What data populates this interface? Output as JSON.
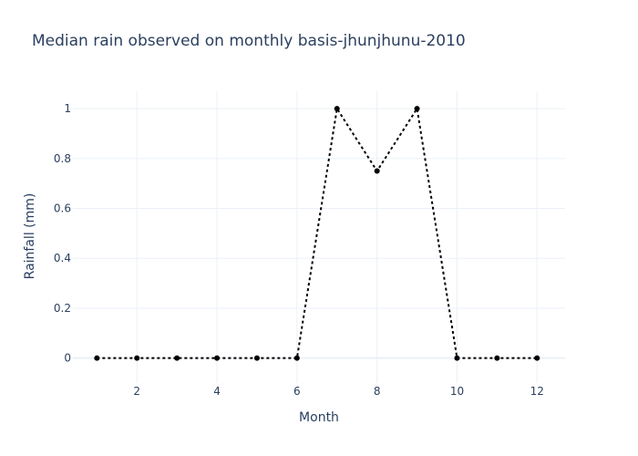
{
  "chart_data": {
    "type": "line",
    "title": "Median rain observed on monthly basis-jhunjhunu-2010",
    "xlabel": "Month",
    "ylabel": "Rainfall (mm)",
    "x": [
      1,
      2,
      3,
      4,
      5,
      6,
      7,
      8,
      9,
      10,
      11,
      12
    ],
    "series": [
      {
        "values": [
          0,
          0,
          0,
          0,
          0,
          0,
          1,
          0.75,
          1,
          0,
          0,
          0
        ],
        "line_style": "dotted",
        "markers": true,
        "color": "#000000"
      }
    ],
    "xlim": [
      0.4,
      12.7
    ],
    "ylim": [
      -0.1,
      1.07
    ],
    "x_ticks": [
      2,
      4,
      6,
      8,
      10,
      12
    ],
    "y_ticks": [
      0,
      0.2,
      0.4,
      0.6,
      0.8,
      1
    ],
    "x_tick_labels": [
      "2",
      "4",
      "6",
      "8",
      "10",
      "12"
    ],
    "y_tick_labels": [
      "0",
      "0.2",
      "0.4",
      "0.6",
      "0.8",
      "1"
    ],
    "grid": true,
    "colors": {
      "text": "#2a3f5f",
      "grid": "#ebf0f8",
      "background": "#ffffff"
    }
  }
}
